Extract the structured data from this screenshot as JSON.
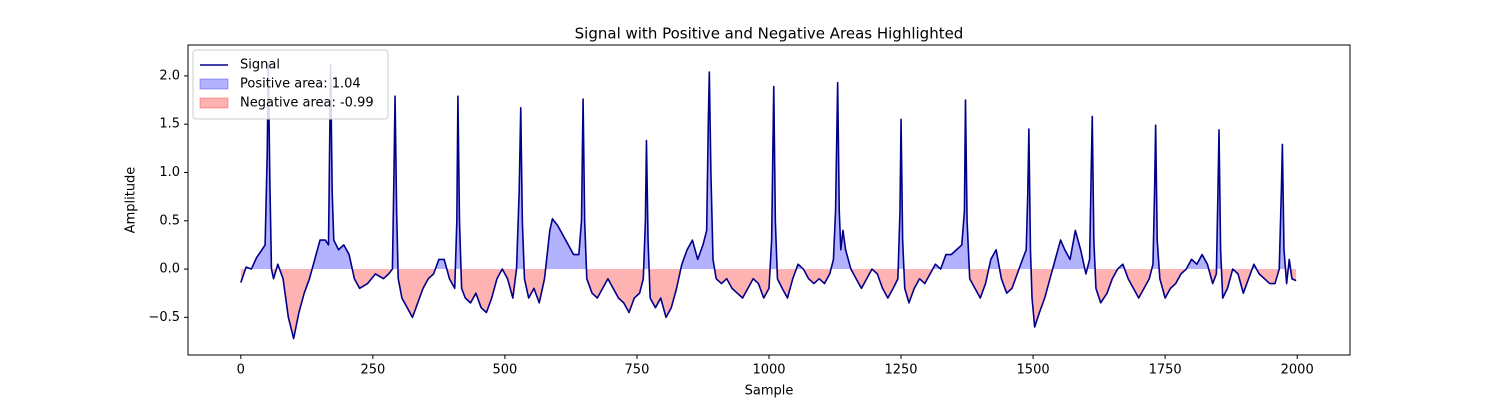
{
  "chart_data": {
    "type": "line",
    "title": "Signal with Positive and Negative Areas Highlighted",
    "x_label": "Sample",
    "y_label": "Amplitude",
    "x": [
      0,
      10,
      20,
      30,
      40,
      46,
      50,
      52,
      55,
      58,
      62,
      70,
      80,
      90,
      100,
      110,
      120,
      130,
      140,
      150,
      160,
      166,
      168,
      170,
      173,
      176,
      185,
      195,
      205,
      215,
      225,
      240,
      255,
      270,
      280,
      287,
      290,
      292,
      295,
      298,
      305,
      315,
      325,
      335,
      345,
      355,
      365,
      375,
      385,
      395,
      405,
      409,
      411,
      414,
      418,
      425,
      435,
      445,
      455,
      465,
      475,
      485,
      495,
      505,
      515,
      522,
      527,
      530,
      533,
      537,
      545,
      555,
      565,
      575,
      585,
      590,
      600,
      610,
      620,
      630,
      640,
      645,
      648,
      651,
      655,
      665,
      675,
      685,
      695,
      705,
      715,
      725,
      735,
      745,
      755,
      762,
      766,
      768,
      771,
      775,
      785,
      795,
      805,
      815,
      825,
      835,
      845,
      855,
      865,
      875,
      882,
      885,
      887,
      890,
      894,
      900,
      910,
      920,
      930,
      940,
      950,
      960,
      970,
      980,
      990,
      1000,
      1005,
      1009,
      1012,
      1016,
      1025,
      1035,
      1045,
      1055,
      1065,
      1075,
      1085,
      1095,
      1105,
      1115,
      1122,
      1126,
      1130,
      1133,
      1136,
      1140,
      1145,
      1155,
      1165,
      1175,
      1185,
      1195,
      1205,
      1215,
      1225,
      1235,
      1244,
      1248,
      1250,
      1253,
      1257,
      1265,
      1275,
      1285,
      1295,
      1305,
      1315,
      1325,
      1335,
      1345,
      1355,
      1365,
      1370,
      1372,
      1375,
      1380,
      1390,
      1400,
      1410,
      1420,
      1430,
      1440,
      1450,
      1460,
      1470,
      1480,
      1487,
      1490,
      1492,
      1495,
      1498,
      1503,
      1512,
      1522,
      1532,
      1542,
      1552,
      1560,
      1570,
      1580,
      1590,
      1600,
      1607,
      1610,
      1612,
      1615,
      1619,
      1628,
      1640,
      1650,
      1660,
      1670,
      1680,
      1690,
      1700,
      1710,
      1720,
      1727,
      1730,
      1732,
      1735,
      1740,
      1750,
      1760,
      1770,
      1780,
      1790,
      1800,
      1810,
      1820,
      1830,
      1840,
      1847,
      1850,
      1852,
      1855,
      1859,
      1868,
      1878,
      1888,
      1898,
      1908,
      1918,
      1928,
      1938,
      1948,
      1958,
      1966,
      1970,
      1972,
      1975,
      1980,
      1985,
      1990,
      1998
    ],
    "series": [
      {
        "name": "Signal",
        "color": "#00008b",
        "values": [
          -0.14,
          0.02,
          0.0,
          0.12,
          0.2,
          0.25,
          1.2,
          2.13,
          0.9,
          0.0,
          -0.1,
          0.05,
          -0.1,
          -0.5,
          -0.72,
          -0.45,
          -0.25,
          -0.1,
          0.1,
          0.3,
          0.3,
          0.25,
          1.2,
          2.12,
          0.8,
          0.3,
          0.2,
          0.25,
          0.15,
          -0.1,
          -0.2,
          -0.15,
          -0.05,
          -0.1,
          -0.05,
          0.0,
          1.0,
          1.79,
          0.6,
          -0.1,
          -0.3,
          -0.4,
          -0.5,
          -0.35,
          -0.2,
          -0.1,
          -0.05,
          0.1,
          0.1,
          -0.1,
          -0.2,
          0.5,
          1.79,
          0.5,
          -0.2,
          -0.3,
          -0.35,
          -0.25,
          -0.4,
          -0.45,
          -0.3,
          -0.1,
          0.0,
          -0.1,
          -0.3,
          0.0,
          0.8,
          1.67,
          0.5,
          -0.1,
          -0.3,
          -0.2,
          -0.35,
          -0.1,
          0.4,
          0.52,
          0.45,
          0.35,
          0.25,
          0.15,
          0.15,
          0.5,
          1.76,
          0.5,
          -0.1,
          -0.25,
          -0.3,
          -0.2,
          -0.1,
          -0.2,
          -0.3,
          -0.35,
          -0.45,
          -0.3,
          -0.25,
          -0.1,
          0.5,
          1.33,
          0.3,
          -0.3,
          -0.4,
          -0.3,
          -0.5,
          -0.4,
          -0.2,
          0.05,
          0.2,
          0.3,
          0.1,
          0.25,
          0.4,
          1.5,
          2.04,
          1.0,
          0.1,
          -0.1,
          -0.15,
          -0.1,
          -0.2,
          -0.25,
          -0.3,
          -0.2,
          -0.1,
          -0.15,
          -0.3,
          -0.2,
          0.3,
          1.89,
          0.5,
          -0.1,
          -0.2,
          -0.3,
          -0.1,
          0.05,
          0.0,
          -0.1,
          -0.15,
          -0.1,
          -0.15,
          -0.05,
          0.1,
          0.6,
          1.93,
          0.6,
          0.2,
          0.4,
          0.2,
          0.0,
          -0.1,
          -0.2,
          -0.1,
          0.0,
          -0.05,
          -0.2,
          -0.3,
          -0.2,
          -0.1,
          0.6,
          1.55,
          0.3,
          -0.2,
          -0.35,
          -0.2,
          -0.1,
          -0.15,
          -0.05,
          0.05,
          0.0,
          0.15,
          0.15,
          0.2,
          0.25,
          0.6,
          1.75,
          0.5,
          -0.1,
          -0.2,
          -0.3,
          -0.15,
          0.1,
          0.2,
          -0.1,
          -0.25,
          -0.2,
          -0.05,
          0.1,
          0.2,
          0.8,
          1.45,
          0.2,
          -0.3,
          -0.6,
          -0.45,
          -0.3,
          -0.1,
          0.1,
          0.3,
          0.2,
          0.1,
          0.4,
          0.2,
          -0.05,
          0.1,
          1.0,
          1.58,
          0.3,
          -0.2,
          -0.35,
          -0.25,
          -0.1,
          0.0,
          0.05,
          -0.1,
          -0.2,
          -0.3,
          -0.2,
          -0.1,
          0.05,
          0.8,
          1.49,
          0.3,
          -0.1,
          -0.3,
          -0.2,
          -0.15,
          -0.05,
          0.0,
          0.1,
          0.05,
          0.15,
          0.05,
          -0.15,
          -0.05,
          0.8,
          1.44,
          0.2,
          -0.3,
          -0.2,
          0.0,
          -0.05,
          -0.25,
          -0.1,
          0.05,
          -0.05,
          -0.1,
          -0.15,
          -0.15,
          0.0,
          0.8,
          1.29,
          0.2,
          -0.15,
          0.1,
          -0.1,
          -0.12
        ]
      }
    ],
    "fills": [
      {
        "name": "Positive area: 1.04",
        "color": "#0000ff",
        "side": "positive"
      },
      {
        "name": "Negative area: -0.99",
        "color": "#ff0000",
        "side": "negative"
      }
    ],
    "fill_alpha": 0.3,
    "xlim": [
      -100,
      2100
    ],
    "ylim": [
      -0.89,
      2.32
    ],
    "xticks": [
      0,
      250,
      500,
      750,
      1000,
      1250,
      1500,
      1750,
      2000
    ],
    "yticks": [
      {
        "value": -0.5,
        "label": "−0.5"
      },
      {
        "value": 0,
        "label": "0.0"
      },
      {
        "value": 0.5,
        "label": "0.5"
      },
      {
        "value": 1,
        "label": "1.0"
      },
      {
        "value": 1.5,
        "label": "1.5"
      },
      {
        "value": 2,
        "label": "2.0"
      }
    ],
    "legend": "upper left",
    "grid": false
  }
}
